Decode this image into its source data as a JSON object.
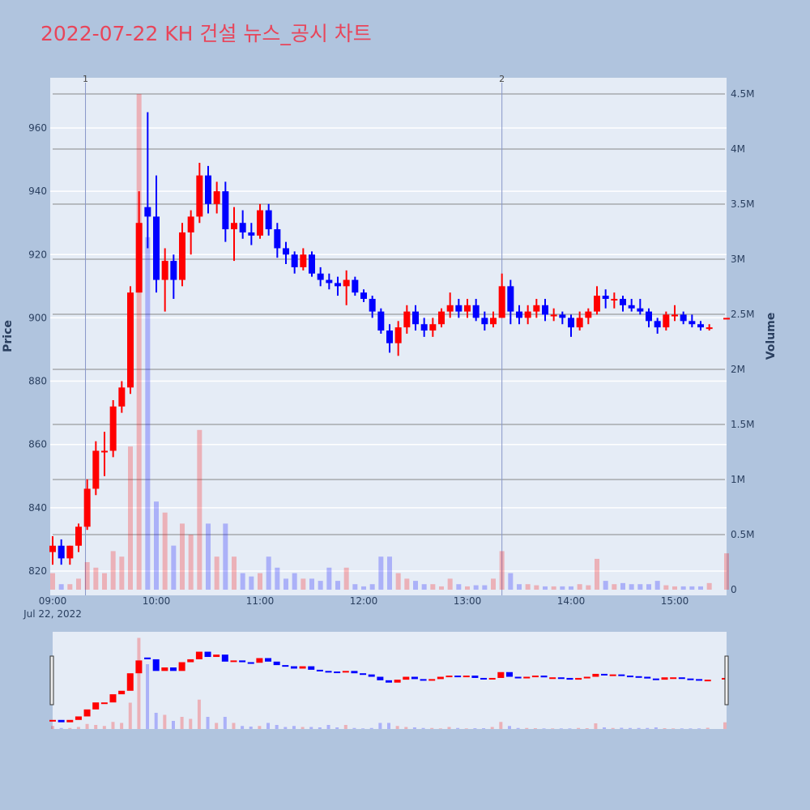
{
  "title": "2022-07-22 KH 건설 뉴스_공시 차트",
  "colors": {
    "increasing": "#ff0000",
    "decreasing": "#0000ff",
    "title": "#e8455a",
    "paper": "#b0c4de",
    "plot": "#e5ecf6"
  },
  "chart_data": {
    "type": "candlestick",
    "title": "2022-07-22 KH 건설 뉴스_공시 차트",
    "ylabel": "Price",
    "y2label": "Volume",
    "ylim": [
      814,
      972
    ],
    "y2lim": [
      0,
      4650000
    ],
    "xlim": [
      "09:00",
      "15:30"
    ],
    "y_ticks": [
      "820",
      "840",
      "860",
      "880",
      "900",
      "920",
      "940",
      "960"
    ],
    "y2_ticks": [
      "0",
      "0.5M",
      "1M",
      "1.5M",
      "2M",
      "2.5M",
      "3M",
      "3.5M",
      "4M",
      "4.5M"
    ],
    "x_ticks": [
      "09:00",
      "10:00",
      "11:00",
      "12:00",
      "13:00",
      "14:00",
      "15:00"
    ],
    "x_date_label": "Jul 22, 2022",
    "grid": true,
    "rangeslider": true,
    "markers": [
      {
        "label": "1",
        "time": "09:19"
      },
      {
        "label": "2",
        "time": "13:20"
      }
    ],
    "columns": [
      "time",
      "open",
      "high",
      "low",
      "close",
      "volume"
    ],
    "rows": [
      [
        "09:00",
        826,
        831,
        822,
        828,
        150000
      ],
      [
        "09:05",
        828,
        830,
        822,
        824,
        50000
      ],
      [
        "09:10",
        824,
        828,
        822,
        828,
        50000
      ],
      [
        "09:15",
        828,
        835,
        826,
        834,
        100000
      ],
      [
        "09:20",
        834,
        849,
        833,
        846,
        250000
      ],
      [
        "09:25",
        846,
        861,
        844,
        858,
        200000
      ],
      [
        "09:30",
        858,
        864,
        850,
        858,
        150000
      ],
      [
        "09:35",
        858,
        874,
        856,
        872,
        350000
      ],
      [
        "09:40",
        872,
        880,
        870,
        878,
        300000
      ],
      [
        "09:45",
        878,
        910,
        876,
        908,
        1300000
      ],
      [
        "09:50",
        908,
        940,
        908,
        930,
        4500000
      ],
      [
        "09:55",
        935,
        965,
        922,
        932,
        3200000
      ],
      [
        "10:00",
        932,
        945,
        908,
        912,
        800000
      ],
      [
        "10:05",
        912,
        922,
        902,
        918,
        700000
      ],
      [
        "10:10",
        918,
        920,
        906,
        912,
        400000
      ],
      [
        "10:15",
        912,
        930,
        910,
        927,
        600000
      ],
      [
        "10:20",
        927,
        934,
        920,
        932,
        500000
      ],
      [
        "10:25",
        932,
        949,
        930,
        945,
        1450000
      ],
      [
        "10:30",
        945,
        948,
        933,
        936,
        600000
      ],
      [
        "10:35",
        936,
        943,
        933,
        940,
        300000
      ],
      [
        "10:40",
        940,
        943,
        924,
        928,
        600000
      ],
      [
        "10:45",
        928,
        935,
        918,
        930,
        300000
      ],
      [
        "10:50",
        930,
        934,
        925,
        927,
        150000
      ],
      [
        "10:55",
        927,
        930,
        923,
        926,
        120000
      ],
      [
        "11:00",
        926,
        936,
        925,
        934,
        150000
      ],
      [
        "11:05",
        934,
        936,
        926,
        928,
        300000
      ],
      [
        "11:10",
        928,
        930,
        919,
        922,
        200000
      ],
      [
        "11:15",
        922,
        924,
        917,
        920,
        100000
      ],
      [
        "11:20",
        920,
        921,
        914,
        916,
        150000
      ],
      [
        "11:25",
        916,
        922,
        915,
        920,
        100000
      ],
      [
        "11:30",
        920,
        921,
        913,
        914,
        100000
      ],
      [
        "11:35",
        914,
        916,
        910,
        912,
        80000
      ],
      [
        "11:40",
        912,
        914,
        909,
        911,
        200000
      ],
      [
        "11:45",
        911,
        913,
        907,
        910,
        80000
      ],
      [
        "11:50",
        910,
        915,
        904,
        912,
        200000
      ],
      [
        "11:55",
        912,
        913,
        907,
        908,
        50000
      ],
      [
        "12:00",
        908,
        909,
        905,
        906,
        30000
      ],
      [
        "12:05",
        906,
        907,
        900,
        902,
        50000
      ],
      [
        "12:10",
        902,
        903,
        895,
        896,
        300000
      ],
      [
        "12:15",
        896,
        898,
        889,
        892,
        300000
      ],
      [
        "12:20",
        892,
        899,
        888,
        897,
        150000
      ],
      [
        "12:25",
        897,
        904,
        895,
        902,
        100000
      ],
      [
        "12:30",
        902,
        904,
        896,
        898,
        80000
      ],
      [
        "12:35",
        898,
        900,
        894,
        896,
        50000
      ],
      [
        "12:40",
        896,
        900,
        894,
        898,
        50000
      ],
      [
        "12:45",
        898,
        903,
        897,
        902,
        30000
      ],
      [
        "12:50",
        902,
        908,
        900,
        904,
        100000
      ],
      [
        "12:55",
        904,
        906,
        900,
        902,
        50000
      ],
      [
        "13:00",
        902,
        906,
        900,
        904,
        30000
      ],
      [
        "13:05",
        904,
        906,
        899,
        900,
        40000
      ],
      [
        "13:10",
        900,
        902,
        896,
        898,
        40000
      ],
      [
        "13:15",
        898,
        902,
        897,
        900,
        100000
      ],
      [
        "13:20",
        900,
        914,
        900,
        910,
        350000
      ],
      [
        "13:25",
        910,
        912,
        898,
        902,
        150000
      ],
      [
        "13:30",
        902,
        904,
        898,
        900,
        50000
      ],
      [
        "13:35",
        900,
        904,
        898,
        902,
        50000
      ],
      [
        "13:40",
        902,
        906,
        900,
        904,
        40000
      ],
      [
        "13:45",
        904,
        906,
        899,
        901,
        30000
      ],
      [
        "13:50",
        901,
        903,
        899,
        901,
        30000
      ],
      [
        "13:55",
        901,
        902,
        898,
        900,
        30000
      ],
      [
        "14:00",
        900,
        901,
        894,
        897,
        30000
      ],
      [
        "14:05",
        897,
        902,
        896,
        900,
        50000
      ],
      [
        "14:10",
        900,
        903,
        898,
        902,
        40000
      ],
      [
        "14:15",
        902,
        910,
        901,
        907,
        280000
      ],
      [
        "14:20",
        907,
        909,
        903,
        906,
        80000
      ],
      [
        "14:25",
        906,
        908,
        903,
        906,
        50000
      ],
      [
        "14:30",
        906,
        907,
        902,
        904,
        60000
      ],
      [
        "14:35",
        904,
        906,
        902,
        903,
        50000
      ],
      [
        "14:40",
        903,
        906,
        901,
        902,
        50000
      ],
      [
        "14:45",
        902,
        903,
        897,
        899,
        50000
      ],
      [
        "14:50",
        899,
        900,
        895,
        897,
        80000
      ],
      [
        "14:55",
        897,
        902,
        896,
        901,
        40000
      ],
      [
        "15:00",
        901,
        904,
        899,
        901,
        30000
      ],
      [
        "15:05",
        901,
        902,
        898,
        899,
        30000
      ],
      [
        "15:10",
        899,
        901,
        897,
        898,
        30000
      ],
      [
        "15:15",
        898,
        899,
        896,
        897,
        30000
      ],
      [
        "15:20",
        897,
        898,
        896,
        897,
        60000
      ],
      [
        "15:30",
        900,
        900,
        900,
        900,
        330000
      ]
    ]
  }
}
